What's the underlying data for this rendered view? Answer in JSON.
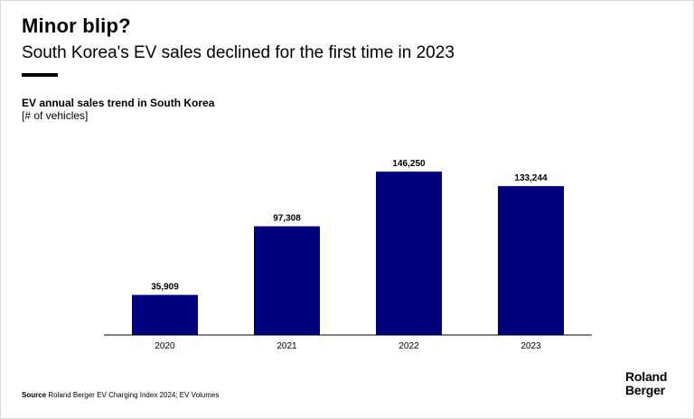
{
  "header": {
    "title": "Minor blip?",
    "subtitle": "South Korea's EV sales declined for the first time in 2023"
  },
  "chart_data": {
    "type": "bar",
    "title": "EV annual sales trend in South Korea",
    "unit_label": "[# of vehicles]",
    "categories": [
      "2020",
      "2021",
      "2022",
      "2023"
    ],
    "values": [
      35909,
      97308,
      146250,
      133244
    ],
    "value_labels": [
      "35,909",
      "97,308",
      "146,250",
      "133,244"
    ],
    "ylim": [
      0,
      160000
    ],
    "bar_color": "#00007f",
    "grid": false,
    "legend": "none"
  },
  "footer": {
    "source_label": "Source",
    "source_text": "Roland Berger EV Charging Index 2024; EV Volumes",
    "logo_line1": "Roland",
    "logo_line2": "Berger"
  }
}
